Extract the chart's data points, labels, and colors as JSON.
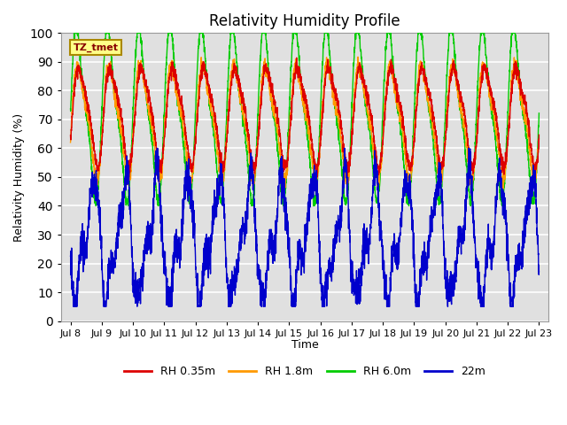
{
  "title": "Relativity Humidity Profile",
  "xlabel": "Time",
  "ylabel": "Relativity Humidity (%)",
  "ylim": [
    0,
    100
  ],
  "bg_color": "#e0e0e0",
  "fig_bg_color": "#ffffff",
  "tz_label": "TZ_tmet",
  "legend": [
    {
      "label": "RH 0.35m",
      "color": "#dd0000"
    },
    {
      "label": "RH 1.8m",
      "color": "#ff9900"
    },
    {
      "label": "RH 6.0m",
      "color": "#00cc00"
    },
    {
      "label": "22m",
      "color": "#0000cc"
    }
  ],
  "x_ticks": [
    8,
    9,
    10,
    11,
    12,
    13,
    14,
    15,
    16,
    17,
    18,
    19,
    20,
    21,
    22,
    23
  ],
  "x_tick_labels": [
    "Jul 8",
    "Jul 9",
    "Jul 10",
    "Jul 11",
    "Jul 12",
    "Jul 13",
    "Jul 14",
    "Jul 15",
    "Jul 16",
    "Jul 17",
    "Jul 18",
    "Jul 19",
    "Jul 20",
    "Jul 21",
    "Jul 22",
    "Jul 23"
  ],
  "xlim": [
    7.7,
    23.3
  ],
  "n_points": 3000
}
